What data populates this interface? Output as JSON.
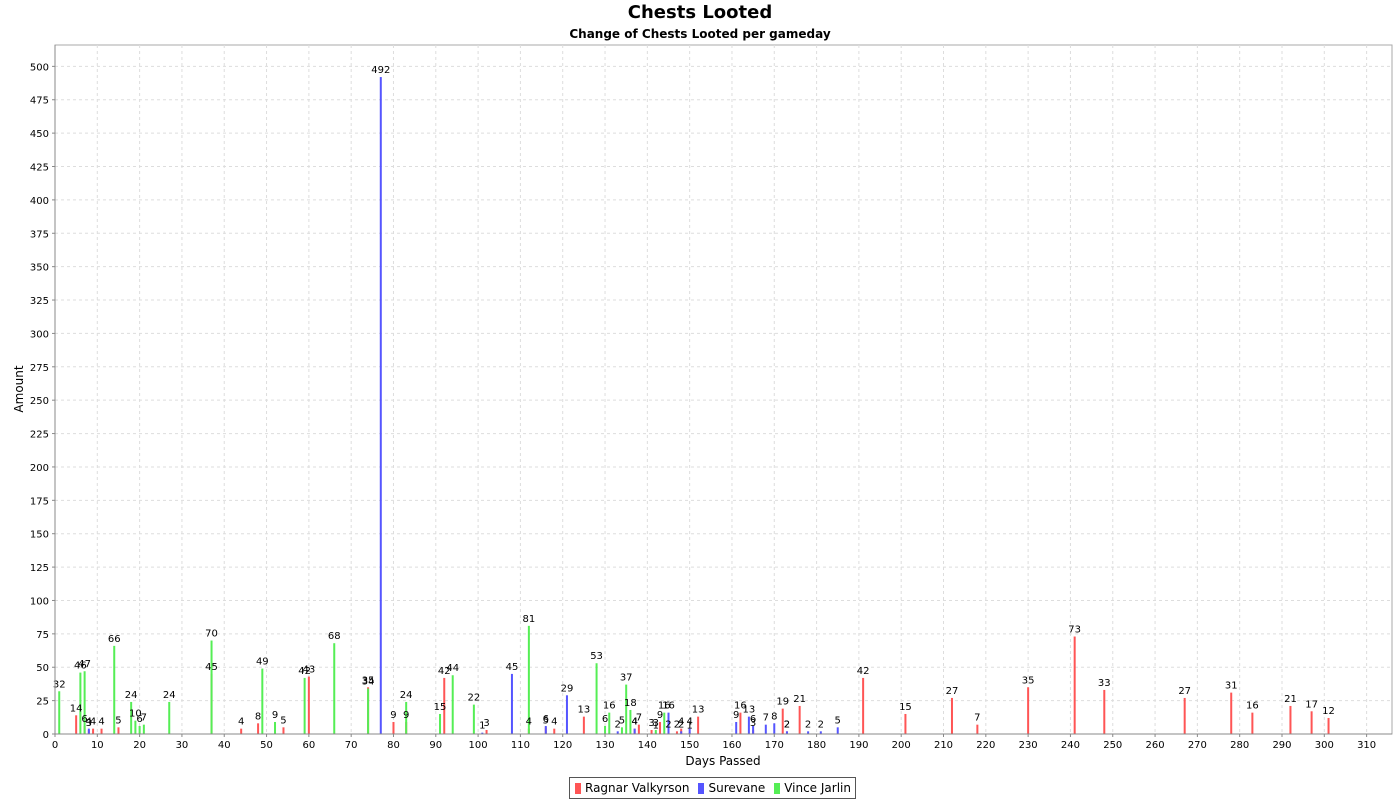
{
  "chart_data": {
    "type": "bar",
    "title": "Chests Looted",
    "subtitle": "Change of Chests Looted per gameday",
    "xlabel": "Days Passed",
    "ylabel": "Amount",
    "xlim": [
      0,
      316
    ],
    "ylim": [
      0,
      516
    ],
    "xticks": [
      0,
      10,
      20,
      30,
      40,
      50,
      60,
      70,
      80,
      90,
      100,
      110,
      120,
      130,
      140,
      150,
      160,
      170,
      180,
      190,
      200,
      210,
      220,
      230,
      240,
      250,
      260,
      270,
      280,
      290,
      300,
      310
    ],
    "yticks": [
      0,
      25,
      50,
      75,
      100,
      125,
      150,
      175,
      200,
      225,
      250,
      275,
      300,
      325,
      350,
      375,
      400,
      425,
      450,
      475,
      500
    ],
    "grid": true,
    "legend_position": "bottom-center",
    "series": [
      {
        "name": "Ragnar Valkyrson",
        "color": "#ff5555",
        "points": [
          [
            5,
            14
          ],
          [
            7,
            6
          ],
          [
            8,
            3
          ],
          [
            9,
            4
          ],
          [
            11,
            4
          ],
          [
            15,
            5
          ],
          [
            37,
            45
          ],
          [
            44,
            4
          ],
          [
            48,
            8
          ],
          [
            54,
            5
          ],
          [
            60,
            43
          ],
          [
            74,
            35
          ],
          [
            80,
            9
          ],
          [
            83,
            9
          ],
          [
            92,
            42
          ],
          [
            102,
            3
          ],
          [
            112,
            4
          ],
          [
            116,
            5
          ],
          [
            118,
            4
          ],
          [
            125,
            13
          ],
          [
            137,
            4
          ],
          [
            138,
            7
          ],
          [
            141,
            3
          ],
          [
            143,
            9
          ],
          [
            145,
            2
          ],
          [
            147,
            2
          ],
          [
            148,
            4
          ],
          [
            150,
            1
          ],
          [
            152,
            13
          ],
          [
            162,
            16
          ],
          [
            165,
            3
          ],
          [
            172,
            19
          ],
          [
            173,
            2
          ],
          [
            176,
            21
          ],
          [
            191,
            42
          ],
          [
            201,
            15
          ],
          [
            212,
            27
          ],
          [
            218,
            7
          ],
          [
            230,
            35
          ],
          [
            241,
            73
          ],
          [
            248,
            33
          ],
          [
            267,
            27
          ],
          [
            278,
            31
          ],
          [
            283,
            16
          ],
          [
            292,
            21
          ],
          [
            297,
            17
          ],
          [
            301,
            12
          ]
        ]
      },
      {
        "name": "Surevane",
        "color": "#5555ff",
        "points": [
          [
            8,
            4
          ],
          [
            77,
            492
          ],
          [
            101,
            1
          ],
          [
            108,
            45
          ],
          [
            116,
            6
          ],
          [
            121,
            29
          ],
          [
            133,
            2
          ],
          [
            137,
            4
          ],
          [
            142,
            1
          ],
          [
            145,
            16
          ],
          [
            148,
            2
          ],
          [
            150,
            4
          ],
          [
            161,
            9
          ],
          [
            164,
            13
          ],
          [
            165,
            6
          ],
          [
            168,
            7
          ],
          [
            170,
            8
          ],
          [
            173,
            2
          ],
          [
            178,
            2
          ],
          [
            181,
            2
          ],
          [
            185,
            5
          ]
        ]
      },
      {
        "name": "Vince Jarlin",
        "color": "#55ee55",
        "points": [
          [
            1,
            32
          ],
          [
            6,
            46
          ],
          [
            7,
            47
          ],
          [
            14,
            66
          ],
          [
            18,
            24
          ],
          [
            19,
            10
          ],
          [
            20,
            6
          ],
          [
            21,
            7
          ],
          [
            27,
            24
          ],
          [
            37,
            70
          ],
          [
            49,
            49
          ],
          [
            52,
            9
          ],
          [
            59,
            42
          ],
          [
            66,
            68
          ],
          [
            74,
            34
          ],
          [
            83,
            24
          ],
          [
            91,
            15
          ],
          [
            94,
            44
          ],
          [
            99,
            22
          ],
          [
            112,
            81
          ],
          [
            128,
            53
          ],
          [
            130,
            6
          ],
          [
            131,
            16
          ],
          [
            134,
            5
          ],
          [
            135,
            37
          ],
          [
            136,
            18
          ],
          [
            142,
            3
          ],
          [
            144,
            16
          ]
        ]
      }
    ]
  }
}
